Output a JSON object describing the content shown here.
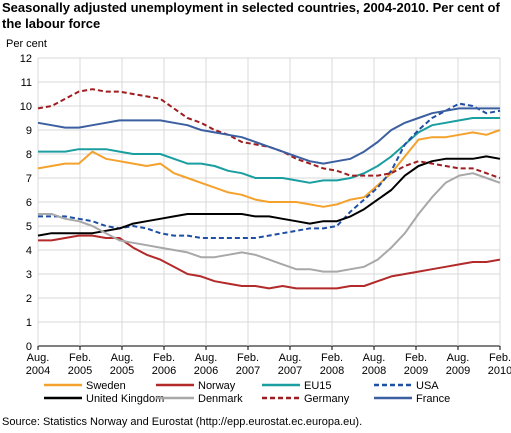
{
  "chart_data": {
    "type": "line",
    "title_lines": [
      "Seasonally adjusted unemployment in selected countries, 2004-2010. Per cent of",
      "the labour force"
    ],
    "ylabel": "Per cent",
    "source": "Source: Statistics Norway and Eurostat (http://epp.eurostat.ec.europa.eu).",
    "ylim": [
      0,
      12
    ],
    "yticks": [
      0,
      1,
      2,
      3,
      4,
      5,
      6,
      7,
      8,
      9,
      10,
      11,
      12
    ],
    "grid": true,
    "legend_position": "bottom",
    "x_ticks": [
      {
        "line1": "Aug.",
        "line2": "2004"
      },
      {
        "line1": "Feb.",
        "line2": "2005"
      },
      {
        "line1": "Aug.",
        "line2": "2005"
      },
      {
        "line1": "Feb.",
        "line2": "2006"
      },
      {
        "line1": "Aug.",
        "line2": "2006"
      },
      {
        "line1": "Feb.",
        "line2": "2007"
      },
      {
        "line1": "Aug.",
        "line2": "2007"
      },
      {
        "line1": "Feb.",
        "line2": "2008"
      },
      {
        "line1": "Aug.",
        "line2": "2008"
      },
      {
        "line1": "Feb.",
        "line2": "2009"
      },
      {
        "line1": "Aug.",
        "line2": "2009"
      },
      {
        "line1": "Feb.",
        "line2": "2010"
      }
    ],
    "x_points": [
      "Aug. 2004",
      "Oct. 2004",
      "Dec. 2004",
      "Feb. 2005",
      "Apr. 2005",
      "Jun. 2005",
      "Aug. 2005",
      "Oct. 2005",
      "Dec. 2005",
      "Feb. 2006",
      "Apr. 2006",
      "Jun. 2006",
      "Aug. 2006",
      "Oct. 2006",
      "Dec. 2006",
      "Feb. 2007",
      "Apr. 2007",
      "Jun. 2007",
      "Aug. 2007",
      "Oct. 2007",
      "Dec. 2007",
      "Feb. 2008",
      "Apr. 2008",
      "Jun. 2008",
      "Aug. 2008",
      "Oct. 2008",
      "Dec. 2008",
      "Feb. 2009",
      "Apr. 2009",
      "Jun. 2009",
      "Aug. 2009",
      "Oct. 2009",
      "Dec. 2009",
      "Feb. 2010",
      "Apr. 2010"
    ],
    "series": [
      {
        "name": "Sweden",
        "color": "#f4a22d",
        "dash": false,
        "values": [
          7.4,
          7.5,
          7.6,
          7.6,
          8.1,
          7.8,
          7.7,
          7.6,
          7.5,
          7.6,
          7.2,
          7.0,
          6.8,
          6.6,
          6.4,
          6.3,
          6.1,
          6.0,
          6.0,
          6.0,
          5.9,
          5.8,
          5.9,
          6.1,
          6.2,
          6.7,
          7.2,
          7.9,
          8.6,
          8.7,
          8.7,
          8.8,
          8.9,
          8.8,
          9.0
        ]
      },
      {
        "name": "Norway",
        "color": "#b22a2a",
        "dash": false,
        "values": [
          4.4,
          4.4,
          4.5,
          4.6,
          4.6,
          4.5,
          4.5,
          4.1,
          3.8,
          3.6,
          3.3,
          3.0,
          2.9,
          2.7,
          2.6,
          2.5,
          2.5,
          2.4,
          2.5,
          2.4,
          2.4,
          2.4,
          2.4,
          2.5,
          2.5,
          2.7,
          2.9,
          3.0,
          3.1,
          3.2,
          3.3,
          3.4,
          3.5,
          3.5,
          3.6
        ]
      },
      {
        "name": "EU15",
        "color": "#1a9ea0",
        "dash": false,
        "values": [
          8.1,
          8.1,
          8.1,
          8.2,
          8.2,
          8.2,
          8.1,
          8.0,
          8.0,
          8.0,
          7.8,
          7.6,
          7.6,
          7.5,
          7.3,
          7.2,
          7.0,
          7.0,
          7.0,
          6.9,
          6.8,
          6.9,
          6.9,
          7.0,
          7.2,
          7.5,
          7.9,
          8.4,
          8.9,
          9.2,
          9.3,
          9.4,
          9.5,
          9.5,
          9.5
        ]
      },
      {
        "name": "USA",
        "color": "#1f4fa3",
        "dash": true,
        "values": [
          5.4,
          5.4,
          5.4,
          5.3,
          5.2,
          5.0,
          4.9,
          5.0,
          4.9,
          4.7,
          4.6,
          4.6,
          4.5,
          4.5,
          4.5,
          4.5,
          4.5,
          4.6,
          4.7,
          4.8,
          4.9,
          4.9,
          5.0,
          5.6,
          6.1,
          6.6,
          7.3,
          8.4,
          9.0,
          9.5,
          9.8,
          10.1,
          10.0,
          9.7,
          9.8
        ]
      },
      {
        "name": "United Kingdom",
        "color": "#000000",
        "dash": false,
        "values": [
          4.6,
          4.7,
          4.7,
          4.7,
          4.7,
          4.8,
          4.9,
          5.1,
          5.2,
          5.3,
          5.4,
          5.5,
          5.5,
          5.5,
          5.5,
          5.5,
          5.4,
          5.4,
          5.3,
          5.2,
          5.1,
          5.2,
          5.2,
          5.4,
          5.7,
          6.1,
          6.5,
          7.1,
          7.5,
          7.7,
          7.8,
          7.8,
          7.8,
          7.9,
          7.8
        ]
      },
      {
        "name": "Denmark",
        "color": "#a8a8a8",
        "dash": false,
        "values": [
          5.5,
          5.5,
          5.3,
          5.2,
          5.0,
          4.7,
          4.4,
          4.3,
          4.2,
          4.1,
          4.0,
          3.9,
          3.7,
          3.7,
          3.8,
          3.9,
          3.8,
          3.6,
          3.4,
          3.2,
          3.2,
          3.1,
          3.1,
          3.2,
          3.3,
          3.6,
          4.1,
          4.7,
          5.5,
          6.2,
          6.8,
          7.1,
          7.2,
          7.0,
          6.8
        ]
      },
      {
        "name": "Germany",
        "color": "#9e1d20",
        "dash": true,
        "values": [
          9.9,
          10.0,
          10.3,
          10.6,
          10.7,
          10.6,
          10.6,
          10.5,
          10.4,
          10.3,
          9.9,
          9.5,
          9.3,
          9.0,
          8.8,
          8.5,
          8.4,
          8.3,
          8.1,
          7.8,
          7.6,
          7.4,
          7.3,
          7.1,
          7.1,
          7.1,
          7.2,
          7.5,
          7.7,
          7.6,
          7.5,
          7.4,
          7.4,
          7.2,
          7.0
        ]
      },
      {
        "name": "France",
        "color": "#3b5fa0",
        "dash": false,
        "values": [
          9.3,
          9.2,
          9.1,
          9.1,
          9.2,
          9.3,
          9.4,
          9.4,
          9.4,
          9.4,
          9.3,
          9.2,
          9.0,
          8.9,
          8.8,
          8.7,
          8.5,
          8.3,
          8.1,
          7.9,
          7.7,
          7.6,
          7.7,
          7.8,
          8.1,
          8.5,
          9.0,
          9.3,
          9.5,
          9.7,
          9.8,
          9.9,
          9.9,
          9.9,
          9.9
        ]
      }
    ]
  }
}
